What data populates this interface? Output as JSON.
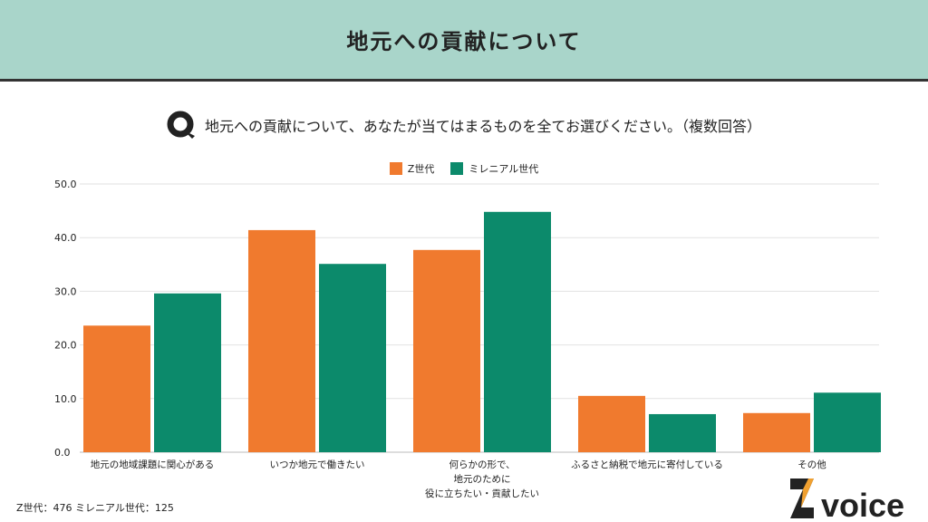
{
  "header": {
    "title": "地元への貢献について"
  },
  "question": {
    "text": "地元への貢献について、あなたが当てはまるものを全てお選びください。（複数回答）"
  },
  "footer": {
    "sample": "Z世代：476  ミレニアル世代：125",
    "logo": "Z voice"
  },
  "colors": {
    "z": "#f07a2e",
    "m": "#0c8a6b",
    "header": "#a9d5ca"
  },
  "chart_data": {
    "type": "bar",
    "title": "",
    "categories": [
      "地元の地域課題に関心がある",
      "いつか地元で働きたい",
      "何らかの形で、\n地元のために\n役に立ちたい・貢献したい",
      "ふるさと納税で地元に寄付している",
      "その他"
    ],
    "series": [
      {
        "name": "Z世代",
        "values": [
          23.6,
          41.4,
          37.7,
          10.5,
          7.3
        ]
      },
      {
        "name": "ミレニアル世代",
        "values": [
          29.6,
          35.1,
          44.8,
          7.1,
          11.1
        ]
      }
    ],
    "yticks": [
      "0.0",
      "10.0",
      "20.0",
      "30.0",
      "40.0",
      "50.0"
    ],
    "ylim": [
      0,
      50
    ],
    "grid": true,
    "legend": "top-center"
  }
}
